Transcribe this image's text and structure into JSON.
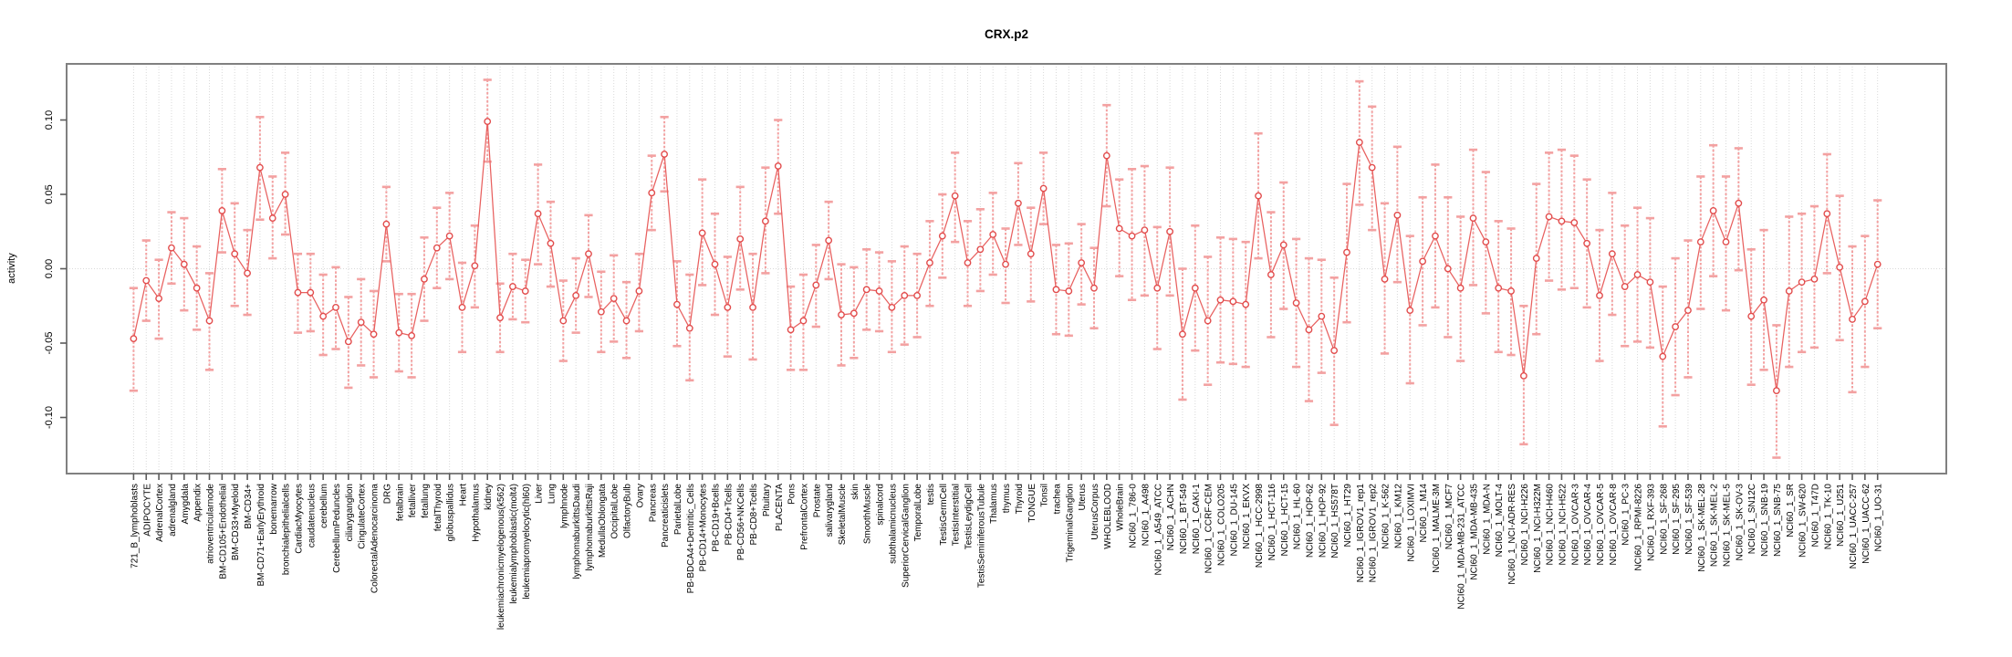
{
  "colors": {
    "point": "#e24c4c",
    "line": "#e8605f",
    "error_bar": "#f3a1a1",
    "grid": "#d9d9d9",
    "box": "#808080",
    "tick": "#5a5a5a",
    "text": "#000000",
    "background": "#ffffff"
  },
  "chart_data": {
    "type": "line",
    "title": "CRX.p2",
    "xlabel": "",
    "ylabel": "activity",
    "ylim": [
      -0.138,
      0.138
    ],
    "y_tick_values": [
      0.1,
      0.05,
      0.0,
      -0.05,
      -0.1
    ],
    "y_tick_labels": [
      "0.10",
      "0.05",
      "0.00",
      "-0.05",
      "-0.10"
    ],
    "legend": "none",
    "grid": "vertical dotted gridline per category; dotted horizontal line at 0",
    "marker": "open-circle",
    "error_bars": true,
    "categories": [
      "721_B_lymphoblasts",
      "ADIPOCYTE",
      "AdrenalCortex",
      "adrenalgland",
      "Amygdala",
      "Appendix",
      "atrioventricularnode",
      "BM-CD105+Endothelial",
      "BM-CD33+Myeloid",
      "BM-CD34+",
      "BM-CD71+EarlyErythroid",
      "bonemarrow",
      "bronchialepithelialcells",
      "CardiacMyocytes",
      "caudatenucleus",
      "cerebellum",
      "CerebellumPeduncles",
      "ciliaryganglion",
      "CingulateCortex",
      "ColorectalAdenocarcinoma",
      "DRG",
      "fetalbrain",
      "fetalliver",
      "fetallung",
      "fetalThyroid",
      "globuspallidus",
      "Heart",
      "Hypothalamus",
      "kidney",
      "leukemiachronicmyelogenous(k562)",
      "leukemialymphoblastic(molt4)",
      "leukemiapromyelocytic(hl60)",
      "Liver",
      "Lung",
      "lymphnode",
      "lymphomaburkittsDaudi",
      "lymphomaburkittsRaji",
      "MedullaOblongata",
      "OccipitalLobe",
      "OlfactoryBulb",
      "Ovary",
      "Pancreas",
      "Pancreaticislets",
      "ParietalLobe",
      "PB-BDCA4+Dentritic_Cells",
      "PB-CD14+Monocytes",
      "PB-CD19+Bcells",
      "PB-CD4+Tcells",
      "PB-CD56+NKCells",
      "PB-CD8+Tcells",
      "Pituitary",
      "PLACENTA",
      "Pons",
      "PrefrontalCortex",
      "Prostate",
      "salivarygland",
      "SkeletalMuscle",
      "skin",
      "SmoothMuscle",
      "spinalcord",
      "subthalamicnucleus",
      "SuperiorCervicalGanglion",
      "TemporalLobe",
      "testis",
      "TestisGermCell",
      "TestisInterstitial",
      "TestisLeydigCell",
      "TestisSeminiferousTubule",
      "Thalamus",
      "thymus",
      "Thyroid",
      "TONGUE",
      "Tonsil",
      "trachea",
      "TrigeminalGanglion",
      "Uterus",
      "UterusCorpus",
      "WHOLEBLOOD",
      "WholeBrain",
      "NCI60_1_786-0",
      "NCI60_1_A498",
      "NCI60_1_A549_ATCC",
      "NCI60_1_ACHN",
      "NCI60_1_BT-549",
      "NCI60_1_CAKI-1",
      "NCI60_1_CCRF-CEM",
      "NCI60_1_COLO205",
      "NCI60_1_DU-145",
      "NCI60_1_EKVX",
      "NCI60_1_HCC-2998",
      "NCI60_1_HCT-116",
      "NCI60_1_HCT-15",
      "NCI60_1_HL-60",
      "NCI60_1_HOP-62",
      "NCI60_1_HOP-92",
      "NCI60_1_HS578T",
      "NCI60_1_HT29",
      "NCI60_1_IGROV1_rep1",
      "NCI60_1_IGROV1_rep2",
      "NCI60_1_K-562",
      "NCI60_1_KM12",
      "NCI60_1_LOXIMVI",
      "NCI60_1_M14",
      "NCI60_1_MALME-3M",
      "NCI60_1_MCF7",
      "NCI60_1_MDA-MB-231_ATCC",
      "NCI60_1_MDA-MB-435",
      "NCI60_1_MDA-N",
      "NCI60_1_MOLT-4",
      "NCI60_1_NCI-ADR-RES",
      "NCI60_1_NCI-H226",
      "NCI60_1_NCI-H322M",
      "NCI60_1_NCI-H460",
      "NCI60_1_NCI-H522",
      "NCI60_1_OVCAR-3",
      "NCI60_1_OVCAR-4",
      "NCI60_1_OVCAR-5",
      "NCI60_1_OVCAR-8",
      "NCI60_1_PC-3",
      "NCI60_1_RPMI-8226",
      "NCI60_1_RXF-393",
      "NCI60_1_SF-268",
      "NCI60_1_SF-295",
      "NCI60_1_SF-539",
      "NCI60_1_SK-MEL-28",
      "NCI60_1_SK-MEL-2",
      "NCI60_1_SK-MEL-5",
      "NCI60_1_SK-OV-3",
      "NCI60_1_SN12C",
      "NCI60_1_SNB-19",
      "NCI60_1_SNB-75",
      "NCI60_1_SR",
      "NCI60_1_SW-620",
      "NCI60_1_T47D",
      "NCI60_1_TK-10",
      "NCI60_1_U251",
      "NCI60_1_UACC-257",
      "NCI60_1_UACC-62",
      "NCI60_1_UO-31"
    ],
    "series": [
      {
        "name": "activity",
        "values": [
          -0.047,
          -0.008,
          -0.02,
          0.014,
          0.003,
          -0.013,
          -0.035,
          0.039,
          0.01,
          -0.003,
          0.068,
          0.034,
          0.05,
          -0.016,
          -0.016,
          -0.032,
          -0.026,
          -0.049,
          -0.036,
          -0.044,
          0.03,
          -0.043,
          -0.045,
          -0.007,
          0.014,
          0.022,
          -0.026,
          0.002,
          0.099,
          -0.033,
          -0.012,
          -0.015,
          0.037,
          0.017,
          -0.035,
          -0.018,
          0.01,
          -0.029,
          -0.02,
          -0.035,
          -0.015,
          0.051,
          0.077,
          -0.024,
          -0.04,
          0.024,
          0.003,
          -0.026,
          0.02,
          -0.026,
          0.032,
          0.069,
          -0.041,
          -0.035,
          -0.011,
          0.019,
          -0.031,
          -0.03,
          -0.014,
          -0.015,
          -0.026,
          -0.018,
          -0.018,
          0.004,
          0.022,
          0.049,
          0.004,
          0.013,
          0.023,
          0.003,
          0.044,
          0.01,
          0.054,
          -0.014,
          -0.015,
          0.004,
          -0.013,
          0.076,
          0.027,
          0.022,
          0.026,
          -0.013,
          0.025,
          -0.044,
          -0.013,
          -0.035,
          -0.021,
          -0.022,
          -0.024,
          0.049,
          -0.004,
          0.016,
          -0.023,
          -0.041,
          -0.032,
          -0.055,
          0.011,
          0.085,
          0.068,
          -0.007,
          0.036,
          -0.028,
          0.005,
          0.022,
          0.0,
          -0.013,
          0.034,
          0.018,
          -0.013,
          -0.015,
          -0.072,
          0.007,
          0.035,
          0.032,
          0.031,
          0.017,
          -0.018,
          0.01,
          -0.012,
          -0.004,
          -0.009,
          -0.059,
          -0.039,
          -0.028,
          0.018,
          0.039,
          0.018,
          0.044,
          -0.032,
          -0.021,
          -0.082,
          -0.015,
          -0.009,
          -0.007,
          0.037,
          0.001,
          -0.034,
          -0.022,
          0.003
        ],
        "error_low": [
          -0.082,
          -0.035,
          -0.047,
          -0.01,
          -0.028,
          -0.041,
          -0.068,
          0.011,
          -0.025,
          -0.031,
          0.033,
          0.007,
          0.023,
          -0.043,
          -0.042,
          -0.058,
          -0.054,
          -0.08,
          -0.065,
          -0.073,
          0.005,
          -0.069,
          -0.073,
          -0.035,
          -0.013,
          -0.007,
          -0.056,
          -0.026,
          0.072,
          -0.056,
          -0.034,
          -0.036,
          0.003,
          -0.012,
          -0.062,
          -0.043,
          -0.019,
          -0.056,
          -0.049,
          -0.06,
          -0.042,
          0.026,
          0.052,
          -0.052,
          -0.075,
          -0.011,
          -0.031,
          -0.059,
          -0.014,
          -0.061,
          -0.003,
          0.037,
          -0.068,
          -0.068,
          -0.039,
          -0.007,
          -0.065,
          -0.06,
          -0.041,
          -0.042,
          -0.056,
          -0.051,
          -0.046,
          -0.025,
          -0.006,
          0.018,
          -0.025,
          -0.015,
          -0.004,
          -0.023,
          0.016,
          -0.022,
          0.03,
          -0.044,
          -0.045,
          -0.024,
          -0.04,
          0.042,
          -0.005,
          -0.021,
          -0.018,
          -0.054,
          -0.018,
          -0.088,
          -0.055,
          -0.078,
          -0.063,
          -0.064,
          -0.066,
          0.007,
          -0.046,
          -0.027,
          -0.066,
          -0.089,
          -0.07,
          -0.105,
          -0.036,
          0.043,
          0.026,
          -0.057,
          -0.009,
          -0.077,
          -0.038,
          -0.026,
          -0.046,
          -0.062,
          -0.011,
          -0.03,
          -0.056,
          -0.058,
          -0.118,
          -0.044,
          -0.008,
          -0.014,
          -0.013,
          -0.026,
          -0.062,
          -0.031,
          -0.052,
          -0.049,
          -0.053,
          -0.106,
          -0.085,
          -0.073,
          -0.027,
          -0.005,
          -0.028,
          -0.001,
          -0.078,
          -0.068,
          -0.127,
          -0.066,
          -0.056,
          -0.053,
          -0.003,
          -0.048,
          -0.083,
          -0.066,
          -0.04
        ],
        "error_high": [
          -0.013,
          0.019,
          0.006,
          0.038,
          0.034,
          0.015,
          -0.003,
          0.067,
          0.044,
          0.026,
          0.102,
          0.062,
          0.078,
          0.01,
          0.01,
          -0.004,
          0.001,
          -0.019,
          -0.007,
          -0.015,
          0.055,
          -0.017,
          -0.017,
          0.021,
          0.041,
          0.051,
          0.004,
          0.029,
          0.127,
          -0.01,
          0.01,
          0.006,
          0.07,
          0.045,
          -0.008,
          0.007,
          0.036,
          -0.002,
          0.009,
          -0.009,
          0.01,
          0.076,
          0.102,
          0.005,
          -0.004,
          0.06,
          0.037,
          0.008,
          0.055,
          0.01,
          0.068,
          0.1,
          -0.012,
          -0.004,
          0.016,
          0.045,
          0.003,
          0.001,
          0.013,
          0.011,
          0.005,
          0.015,
          0.01,
          0.032,
          0.05,
          0.078,
          0.032,
          0.04,
          0.051,
          0.027,
          0.071,
          0.041,
          0.078,
          0.016,
          0.017,
          0.03,
          0.014,
          0.11,
          0.06,
          0.067,
          0.069,
          0.028,
          0.068,
          0.0,
          0.029,
          0.008,
          0.021,
          0.02,
          0.018,
          0.091,
          0.038,
          0.058,
          0.02,
          0.007,
          0.006,
          -0.006,
          0.057,
          0.126,
          0.109,
          0.044,
          0.082,
          0.022,
          0.048,
          0.07,
          0.048,
          0.035,
          0.08,
          0.065,
          0.032,
          0.027,
          -0.025,
          0.057,
          0.078,
          0.08,
          0.076,
          0.06,
          0.026,
          0.051,
          0.029,
          0.041,
          0.034,
          -0.012,
          0.007,
          0.019,
          0.062,
          0.083,
          0.062,
          0.081,
          0.013,
          0.026,
          -0.038,
          0.035,
          0.037,
          0.042,
          0.077,
          0.049,
          0.015,
          0.022,
          0.046
        ]
      }
    ]
  }
}
